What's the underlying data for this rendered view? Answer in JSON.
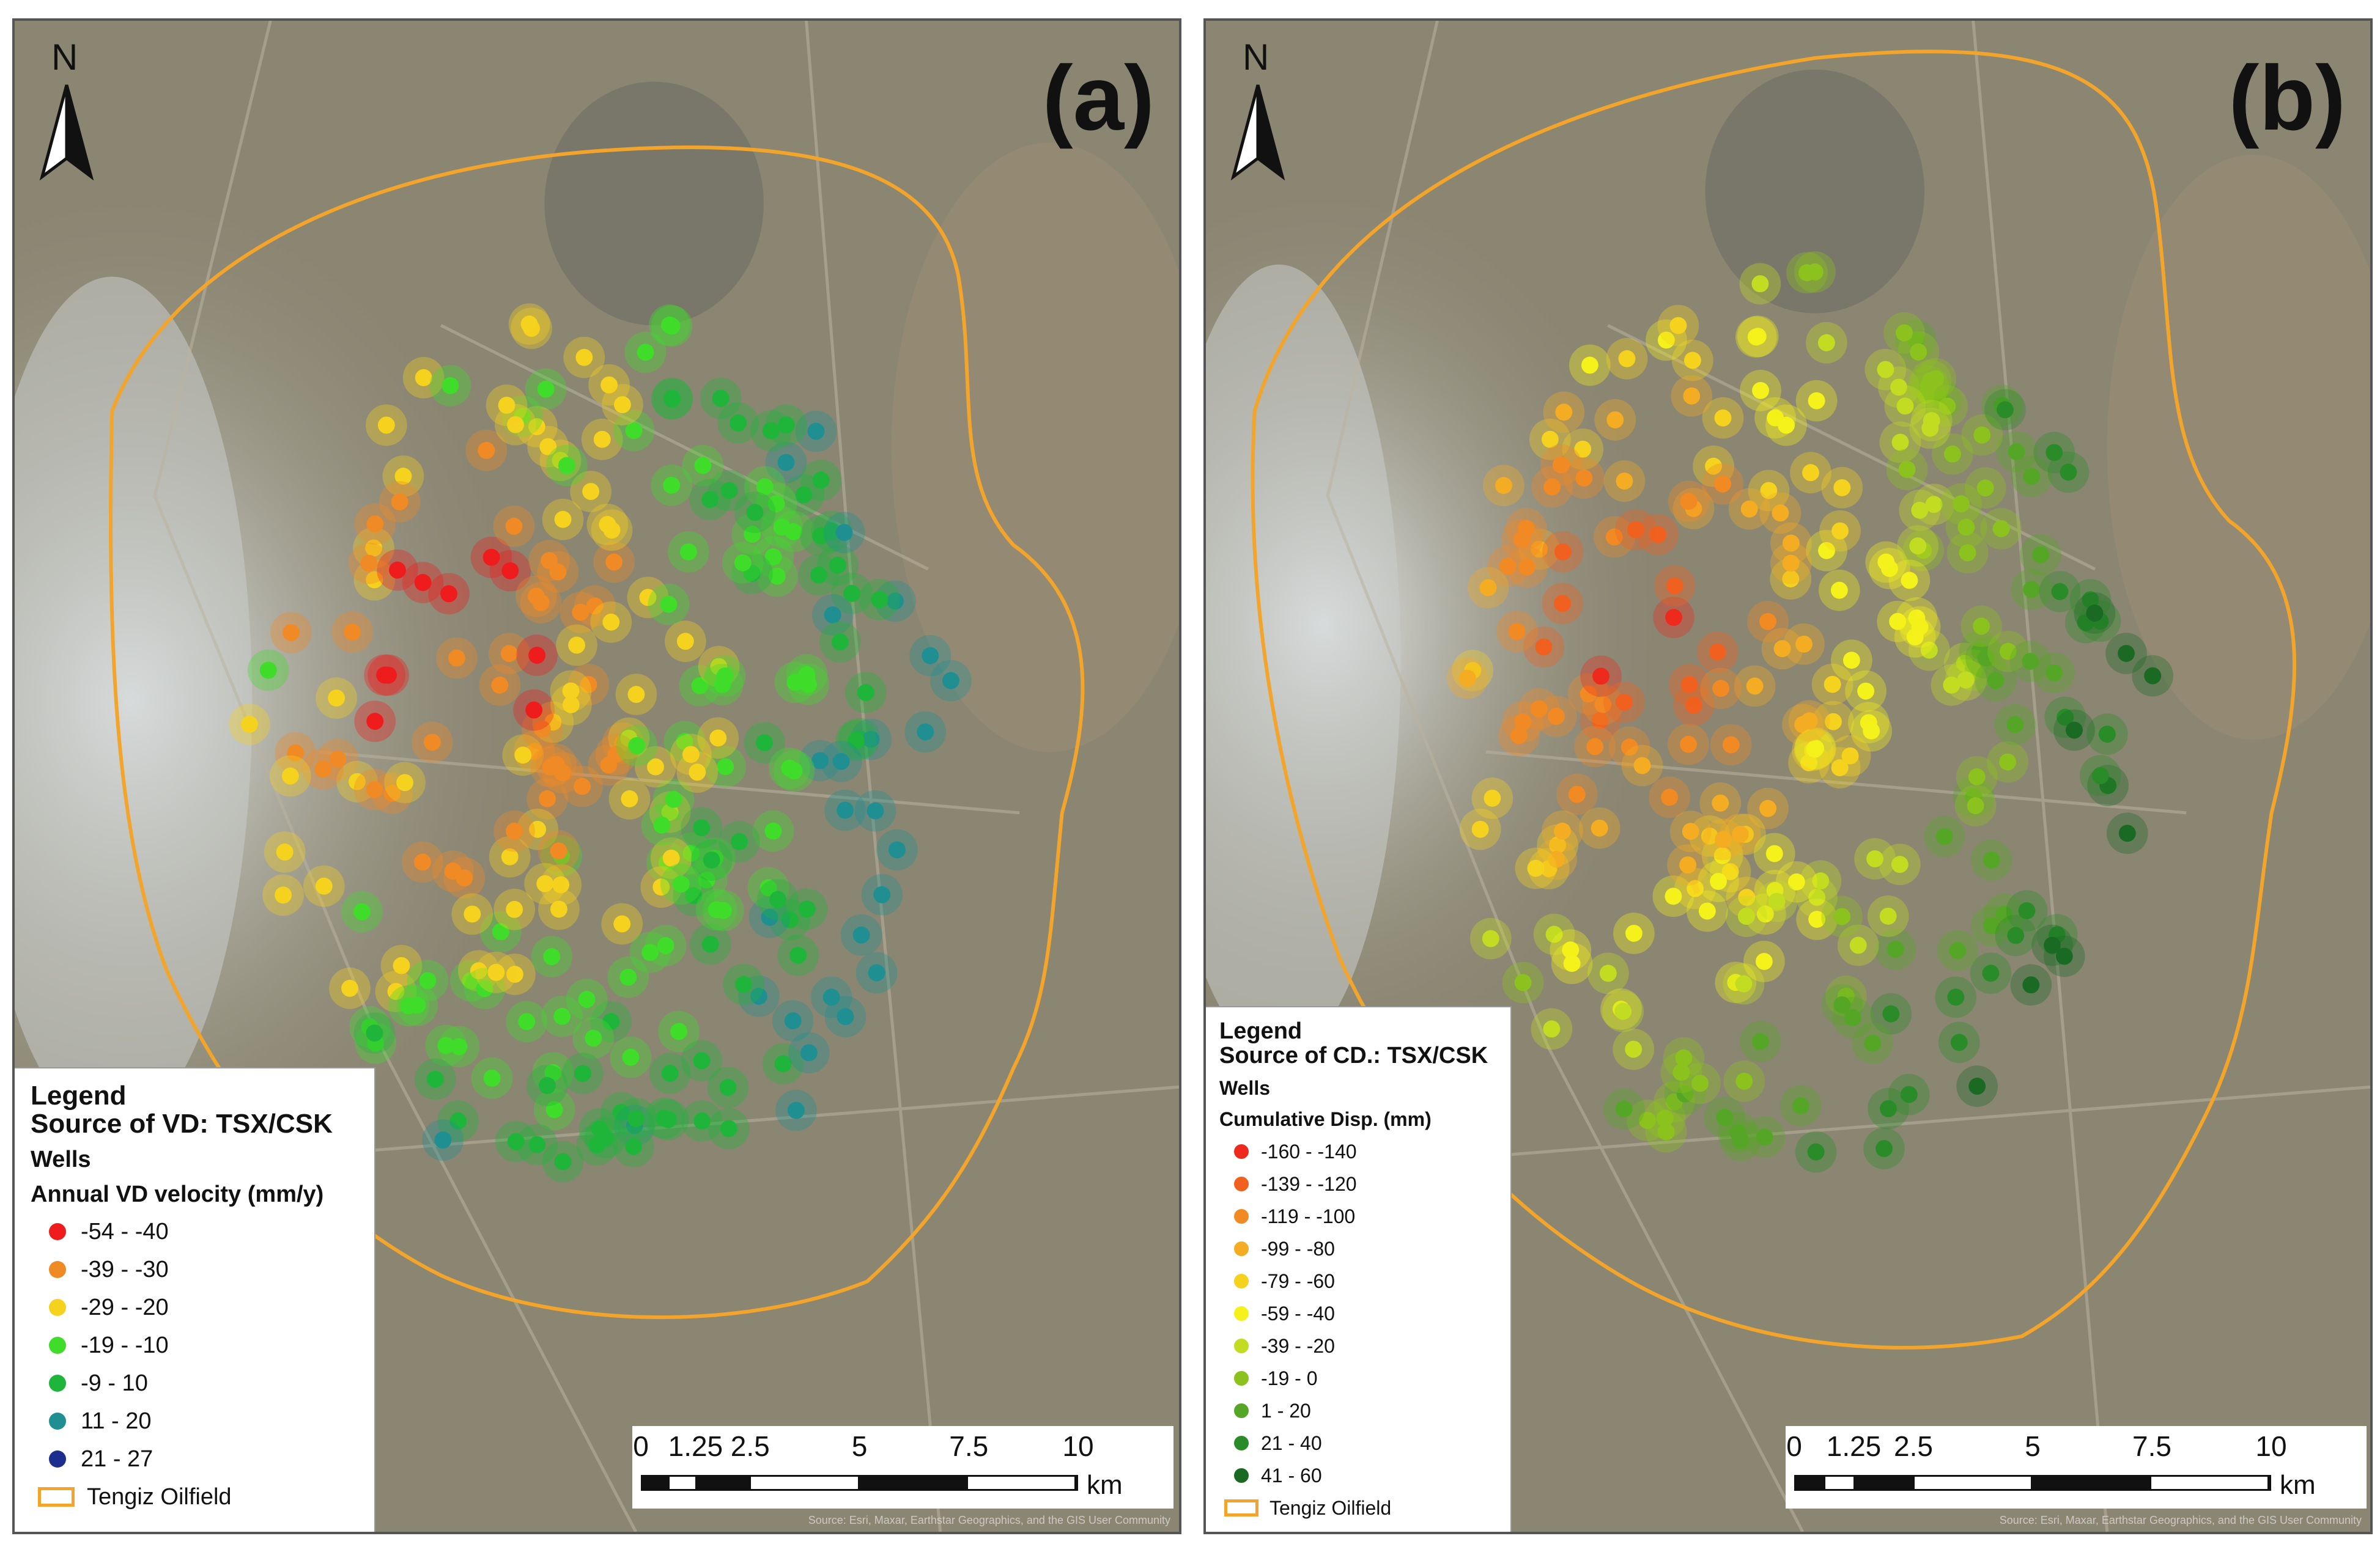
{
  "colors": {
    "field_outline": "#f2a52a",
    "background": "#8a8672"
  },
  "panels": [
    {
      "label": "(a)",
      "north": "N",
      "legend": {
        "title_line1": "Legend",
        "title_line2": "Source of VD: TSX/CSK",
        "wells": "Wells",
        "variable": "Annual VD velocity (mm/y)",
        "classes": [
          {
            "label": "-54 - -40",
            "color": "#ee1c1c"
          },
          {
            "label": "-39 - -30",
            "color": "#f08a24"
          },
          {
            "label": "-29 - -20",
            "color": "#f5d21e"
          },
          {
            "label": "-19 - -10",
            "color": "#3fdc2a"
          },
          {
            "label": "-9 - 10",
            "color": "#1fb53a"
          },
          {
            "label": "11 - 20",
            "color": "#1f8f92"
          },
          {
            "label": "21 - 27",
            "color": "#1c2f8f"
          }
        ],
        "field": "Tengiz Oilfield"
      },
      "scale": {
        "ticks": [
          "0",
          "1.25",
          "2.5",
          "5",
          "7.5",
          "10"
        ],
        "unit": "km"
      },
      "source": "Source: Esri, Maxar, Earthstar Geographics, and the GIS User Community"
    },
    {
      "label": "(b)",
      "north": "N",
      "legend": {
        "title_line1": "Legend",
        "title_line2": "Source of CD.: TSX/CSK",
        "wells": "Wells",
        "variable": "Cumulative Disp. (mm)",
        "classes": [
          {
            "label": "-160 - -140",
            "color": "#ee2a1c"
          },
          {
            "label": "-139 - -120",
            "color": "#f0601e"
          },
          {
            "label": "-119 - -100",
            "color": "#f28a24"
          },
          {
            "label": "-99 - -80",
            "color": "#f4ad22"
          },
          {
            "label": "-79 - -60",
            "color": "#f5d21e"
          },
          {
            "label": "-59 - -40",
            "color": "#f4f21a"
          },
          {
            "label": "-39 - -20",
            "color": "#c2dc22"
          },
          {
            "label": "-19 - 0",
            "color": "#8cc21e"
          },
          {
            "label": "1 - 20",
            "color": "#55a626"
          },
          {
            "label": "21 - 40",
            "color": "#2a8c28"
          },
          {
            "label": "41 - 60",
            "color": "#1a6a24"
          }
        ],
        "field": "Tengiz Oilfield"
      },
      "scale": {
        "ticks": [
          "0",
          "1.25",
          "2.5",
          "5",
          "7.5",
          "10"
        ],
        "unit": "km"
      },
      "source": "Source: Esri, Maxar, Earthstar Geographics, and the GIS User Community"
    }
  ]
}
